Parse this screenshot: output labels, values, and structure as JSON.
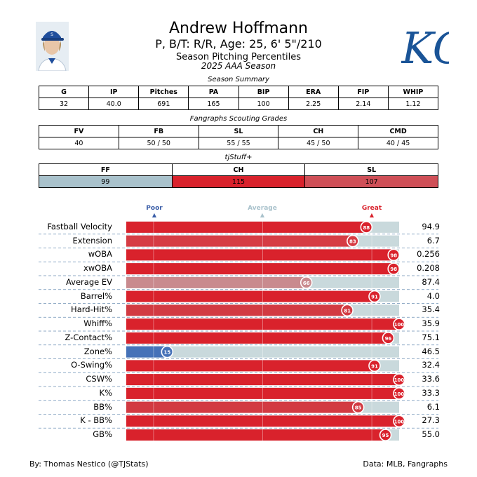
{
  "header": {
    "name": "Andrew Hoffmann",
    "bio": "P, B/T: R/R, Age: 25, 6' 5\"/210",
    "subtitle": "Season Pitching Percentiles",
    "season": "2025 AAA Season",
    "logo_text": "KC"
  },
  "summary": {
    "title": "Season Summary",
    "headers": [
      "G",
      "IP",
      "Pitches",
      "PA",
      "BIP",
      "ERA",
      "FIP",
      "WHIP"
    ],
    "values": [
      "32",
      "40.0",
      "691",
      "165",
      "100",
      "2.25",
      "2.14",
      "1.12"
    ]
  },
  "scouting": {
    "title": "Fangraphs Scouting Grades",
    "headers": [
      "FV",
      "FB",
      "SL",
      "CH",
      "CMD"
    ],
    "values": [
      "40",
      "50 / 50",
      "55 / 55",
      "45 / 50",
      "40 / 45"
    ]
  },
  "tjstuff": {
    "title": "tjStuff+",
    "headers": [
      "FF",
      "CH",
      "SL"
    ],
    "values": [
      "99",
      "115",
      "107"
    ],
    "colors": [
      "#a9c2cc",
      "#d9222c",
      "#cf4f57"
    ]
  },
  "chart_data": {
    "type": "bar",
    "orientation": "horizontal",
    "xlim": [
      0,
      100
    ],
    "legend": {
      "poor": "Poor",
      "average": "Average",
      "great": "Great"
    },
    "categories": [
      "Fastball Velocity",
      "Extension",
      "wOBA",
      "xwOBA",
      "Average EV",
      "Barrel%",
      "Hard-Hit%",
      "Whiff%",
      "Z-Contact%",
      "Zone%",
      "O-Swing%",
      "CSW%",
      "K%",
      "BB%",
      "K - BB%",
      "GB%"
    ],
    "percentiles": [
      88,
      83,
      98,
      98,
      66,
      91,
      81,
      100,
      96,
      15,
      91,
      100,
      100,
      85,
      100,
      95
    ],
    "values_display": [
      "94.9",
      "6.7",
      "0.256",
      "0.208",
      "87.4",
      "4.0",
      "35.4",
      "35.9",
      "75.1",
      "46.5",
      "32.4",
      "33.6",
      "33.3",
      "6.1",
      "27.3",
      "55.0"
    ],
    "colors": [
      "#d9222c",
      "#d63c44",
      "#d9222c",
      "#d9222c",
      "#c98a8e",
      "#d9222c",
      "#d23a42",
      "#d9222c",
      "#d9222c",
      "#4672b8",
      "#d9222c",
      "#d9222c",
      "#d9222c",
      "#d23a42",
      "#d9222c",
      "#d9222c"
    ],
    "track_color": "#c9d9dc"
  },
  "footer": {
    "left": "By: Thomas Nestico (@TJStats)",
    "right": "Data: MLB, Fangraphs"
  }
}
